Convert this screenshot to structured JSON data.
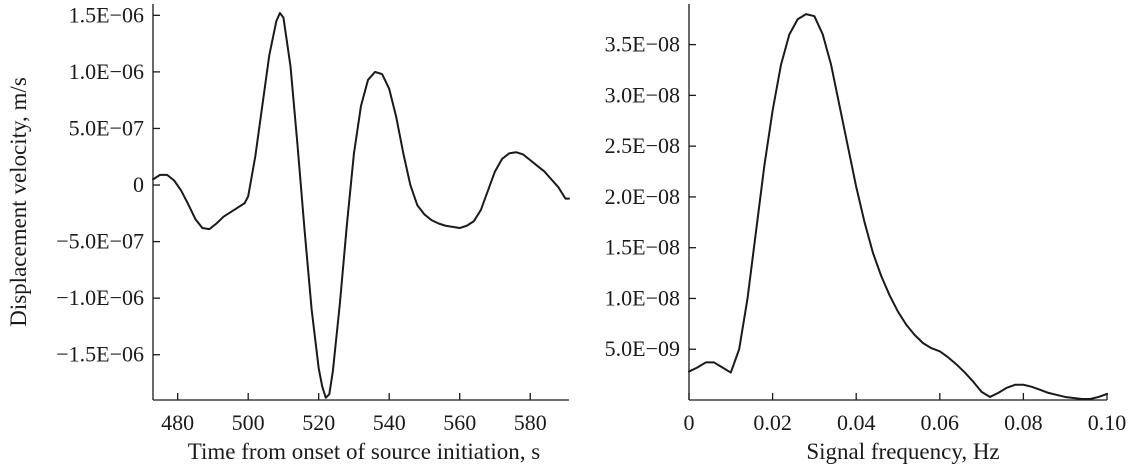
{
  "chart_data": [
    {
      "type": "line",
      "title": "",
      "xlabel": "Time from onset of source initiation, s",
      "ylabel": "Displacement velocity, m/s",
      "xlim": [
        473,
        591
      ],
      "ylim": [
        -1.9e-06,
        1.6e-06
      ],
      "grid": false,
      "x_ticks": [
        480,
        500,
        520,
        540,
        560,
        580
      ],
      "x_tick_labels": [
        "480",
        "500",
        "520",
        "540",
        "560",
        "580"
      ],
      "y_ticks": [
        1.5e-06,
        1e-06,
        5e-07,
        0,
        -5e-07,
        -1e-06,
        -1.5e-06
      ],
      "y_tick_labels": [
        "1.5E−06",
        "1.0E−06",
        "5.0E−07",
        "0",
        "−5.0E−07",
        "−1.0E−06",
        "−1.5E−06"
      ],
      "series": [
        {
          "x": [
            473,
            475,
            477,
            479,
            481,
            483,
            485,
            487,
            489,
            491,
            493,
            495,
            497,
            499,
            500,
            502,
            504,
            506,
            508,
            509,
            510,
            512,
            514,
            516,
            518,
            520,
            521,
            522,
            523,
            524,
            526,
            528,
            530,
            532,
            534,
            536,
            538,
            540,
            542,
            544,
            546,
            548,
            550,
            552,
            554,
            556,
            558,
            560,
            562,
            564,
            566,
            568,
            570,
            572,
            574,
            576,
            578,
            580,
            582,
            584,
            586,
            588,
            590,
            591
          ],
          "y": [
            5e-08,
            9e-08,
            9e-08,
            4e-08,
            -5e-08,
            -1.7e-07,
            -3e-07,
            -3.8e-07,
            -3.9e-07,
            -3.4e-07,
            -2.8e-07,
            -2.4e-07,
            -2e-07,
            -1.6e-07,
            -1e-07,
            2.5e-07,
            7e-07,
            1.15e-06,
            1.45e-06,
            1.52e-06,
            1.48e-06,
            1.05e-06,
            3.5e-07,
            -4e-07,
            -1.1e-06,
            -1.62e-06,
            -1.78e-06,
            -1.88e-06,
            -1.85e-06,
            -1.65e-06,
            -1.05e-06,
            -3.5e-07,
            2.8e-07,
            7e-07,
            9.3e-07,
            1e-06,
            9.8e-07,
            8.5e-07,
            6e-07,
            2.8e-07,
            0,
            -1.8e-07,
            -2.6e-07,
            -3.1e-07,
            -3.4e-07,
            -3.6e-07,
            -3.7e-07,
            -3.8e-07,
            -3.6e-07,
            -3.2e-07,
            -2.2e-07,
            -5e-08,
            1.2e-07,
            2.3e-07,
            2.8e-07,
            2.9e-07,
            2.7e-07,
            2.2e-07,
            1.7e-07,
            1.2e-07,
            5e-08,
            -2e-08,
            -1.2e-07,
            -1.2e-07
          ]
        }
      ]
    },
    {
      "type": "line",
      "title": "",
      "xlabel": "Signal frequency, Hz",
      "ylabel": "",
      "xlim": [
        0,
        0.1
      ],
      "ylim": [
        0,
        3.9e-08
      ],
      "grid": false,
      "x_ticks": [
        0,
        0.02,
        0.04,
        0.06,
        0.08,
        0.1
      ],
      "x_tick_labels": [
        "0",
        "0.02",
        "0.04",
        "0.06",
        "0.08",
        "0.10"
      ],
      "y_ticks": [
        3.5e-08,
        3e-08,
        2.5e-08,
        2e-08,
        1.5e-08,
        1e-08,
        5e-09
      ],
      "y_tick_labels": [
        "3.5E−08",
        "3.0E−08",
        "2.5E−08",
        "2.0E−08",
        "1.5E−08",
        "1.0E−08",
        "5.0E−09"
      ],
      "series": [
        {
          "x": [
            0,
            0.002,
            0.004,
            0.006,
            0.008,
            0.01,
            0.012,
            0.014,
            0.016,
            0.018,
            0.02,
            0.022,
            0.024,
            0.026,
            0.028,
            0.03,
            0.032,
            0.034,
            0.036,
            0.038,
            0.04,
            0.042,
            0.044,
            0.046,
            0.048,
            0.05,
            0.052,
            0.054,
            0.056,
            0.058,
            0.06,
            0.062,
            0.064,
            0.066,
            0.068,
            0.07,
            0.072,
            0.074,
            0.076,
            0.078,
            0.08,
            0.082,
            0.084,
            0.086,
            0.088,
            0.09,
            0.092,
            0.094,
            0.096,
            0.098,
            0.1
          ],
          "y": [
            2.8e-09,
            3.2e-09,
            3.7e-09,
            3.7e-09,
            3.2e-09,
            2.7e-09,
            5e-09,
            1e-08,
            1.65e-08,
            2.3e-08,
            2.85e-08,
            3.3e-08,
            3.6e-08,
            3.75e-08,
            3.8e-08,
            3.78e-08,
            3.6e-08,
            3.3e-08,
            2.9e-08,
            2.5e-08,
            2.1e-08,
            1.75e-08,
            1.45e-08,
            1.22e-08,
            1.03e-08,
            8.7e-09,
            7.4e-09,
            6.4e-09,
            5.6e-09,
            5.1e-09,
            4.8e-09,
            4.2e-09,
            3.5e-09,
            2.7e-09,
            1.8e-09,
            8e-10,
            3e-10,
            7e-10,
            1.2e-09,
            1.5e-09,
            1.5e-09,
            1.3e-09,
            1e-09,
            7e-10,
            5e-10,
            3e-10,
            2e-10,
            1e-10,
            1e-10,
            3e-10,
            6e-10
          ]
        }
      ]
    }
  ]
}
